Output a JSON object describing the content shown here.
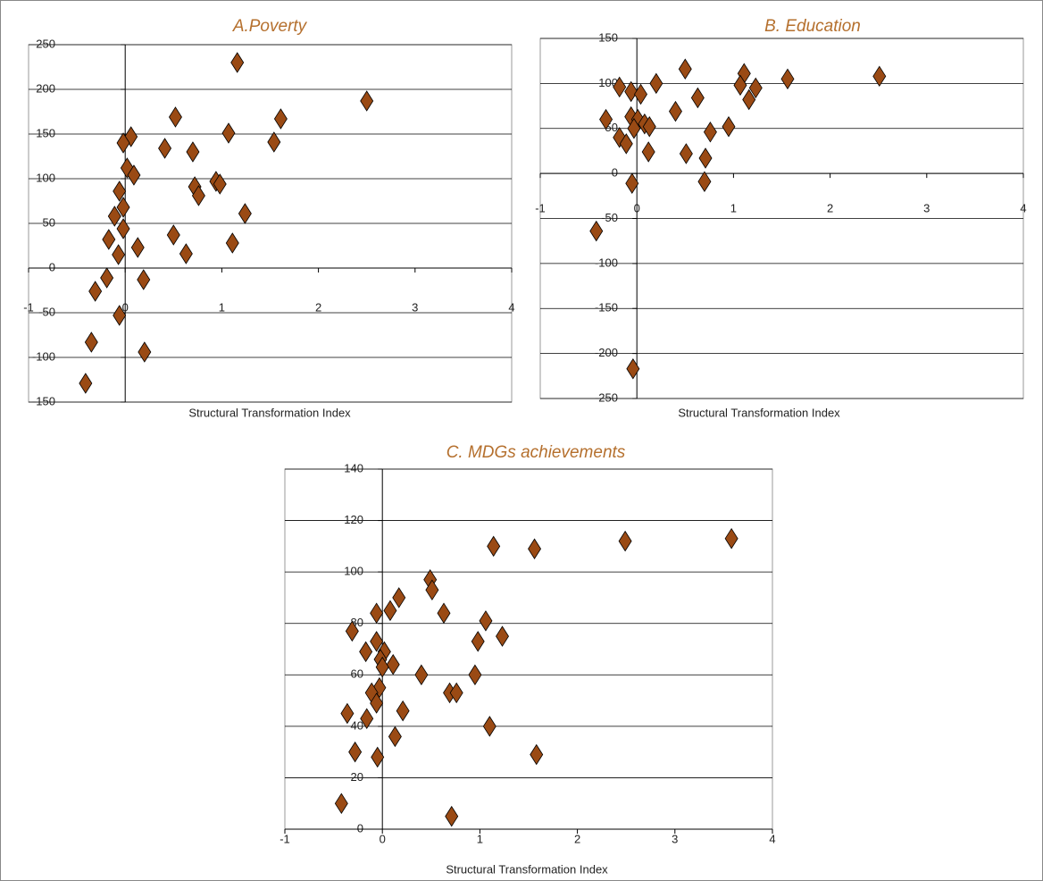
{
  "chart_data": [
    {
      "type": "scatter",
      "title": "A.Poverty",
      "x_label": "Structural Transformation Index",
      "color": "#9a4a14",
      "xlim": [
        -1,
        4
      ],
      "xticks": [
        -1,
        0,
        1,
        2,
        3,
        4
      ],
      "ylim": [
        -150,
        250
      ],
      "yticks": [
        -150,
        -100,
        -50,
        0,
        50,
        100,
        150,
        200,
        250
      ],
      "grid": true,
      "x": [
        1.16,
        2.5,
        0.52,
        1.61,
        0.06,
        1.07,
        -0.02,
        1.54,
        0.41,
        0.7,
        0.02,
        0.09,
        0.94,
        0.98,
        0.72,
        0.76,
        -0.06,
        -0.02,
        -0.11,
        1.24,
        -0.02,
        0.5,
        -0.17,
        1.11,
        0.13,
        0.63,
        -0.07,
        -0.19,
        0.19,
        -0.31,
        -0.06,
        -0.35,
        0.2,
        -0.41
      ],
      "values": [
        230,
        187,
        169,
        167,
        147,
        151,
        140,
        141,
        134,
        130,
        112,
        104,
        97,
        94,
        91,
        81,
        86,
        68,
        58,
        61,
        44,
        37,
        32,
        28,
        23,
        16,
        15,
        -11,
        -13,
        -26,
        -53,
        -83,
        -94,
        -129
      ]
    },
    {
      "type": "scatter",
      "title": "B. Education",
      "x_label": "Structural Transformation Index",
      "color": "#9a4a14",
      "xlim": [
        -1,
        4
      ],
      "xticks": [
        -1,
        0,
        1,
        2,
        3,
        4
      ],
      "ylim": [
        -250,
        150
      ],
      "yticks": [
        -250,
        -200,
        -150,
        -100,
        -50,
        0,
        50,
        100,
        150
      ],
      "grid": true,
      "x": [
        2.51,
        1.56,
        1.11,
        0.5,
        1.07,
        1.23,
        0.2,
        -0.18,
        -0.06,
        0.04,
        0.63,
        1.16,
        0.4,
        -0.06,
        -0.32,
        0.01,
        0.08,
        0.13,
        -0.03,
        0.95,
        0.76,
        -0.18,
        -0.11,
        0.12,
        0.51,
        0.71,
        -0.05,
        0.7,
        -0.42,
        -0.04
      ],
      "values": [
        108,
        105,
        111,
        116,
        98,
        95,
        100,
        96,
        91,
        88,
        84,
        82,
        69,
        63,
        60,
        60,
        55,
        52,
        50,
        52,
        46,
        40,
        33,
        24,
        22,
        17,
        -11,
        -9,
        -64,
        -217
      ]
    },
    {
      "type": "scatter",
      "title": "C. MDGs achievements",
      "x_label": "Structural Transformation Index",
      "color": "#9a4a14",
      "xlim": [
        -1,
        4
      ],
      "xticks": [
        -1,
        0,
        1,
        2,
        3,
        4
      ],
      "ylim": [
        0,
        140
      ],
      "yticks": [
        0,
        20,
        40,
        60,
        80,
        100,
        120,
        140
      ],
      "grid": true,
      "x": [
        3.58,
        2.49,
        1.14,
        1.56,
        0.49,
        0.51,
        0.17,
        0.08,
        -0.06,
        0.63,
        1.06,
        -0.31,
        1.23,
        0.98,
        -0.06,
        0.02,
        -0.17,
        -0.02,
        0.11,
        0,
        0.4,
        0.95,
        -0.03,
        -0.11,
        0.69,
        0.76,
        -0.06,
        -0.36,
        0.21,
        -0.16,
        1.1,
        0.13,
        -0.28,
        1.58,
        -0.05,
        -0.42,
        0.71
      ],
      "values": [
        113,
        112,
        110,
        109,
        97,
        93,
        90,
        85,
        84,
        84,
        81,
        77,
        75,
        73,
        73,
        69,
        69,
        66,
        64,
        63,
        60,
        60,
        55,
        53,
        53,
        53,
        49,
        45,
        46,
        43,
        40,
        36,
        30,
        29,
        28,
        10,
        5
      ]
    }
  ]
}
